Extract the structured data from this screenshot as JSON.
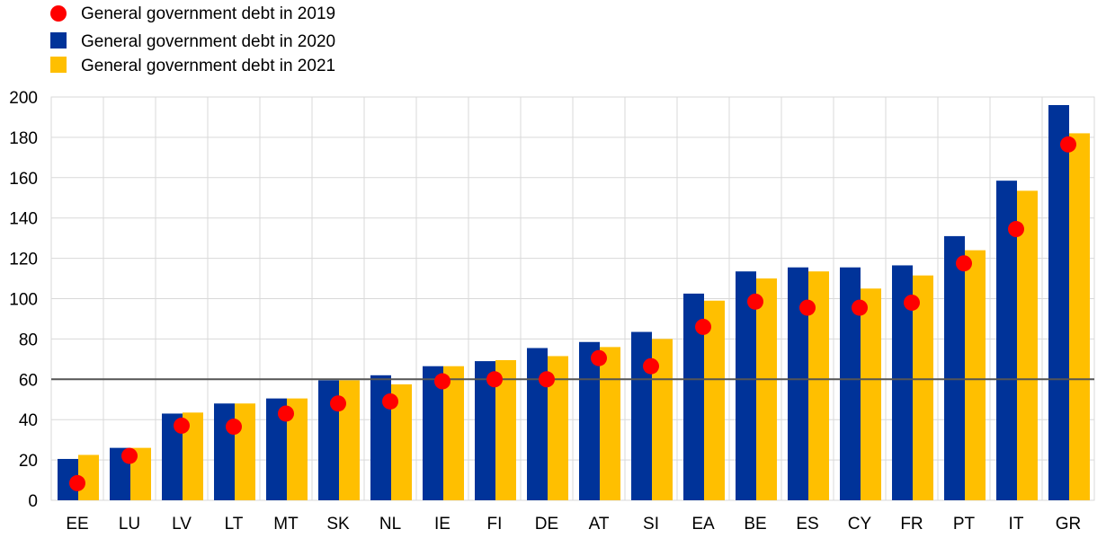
{
  "chart_data": {
    "type": "bar",
    "categories": [
      "EE",
      "LU",
      "LV",
      "LT",
      "MT",
      "SK",
      "NL",
      "IE",
      "FI",
      "DE",
      "AT",
      "SI",
      "EA",
      "BE",
      "ES",
      "CY",
      "FR",
      "PT",
      "IT",
      "GR"
    ],
    "series": [
      {
        "name": "General government debt in 2020",
        "kind": "bar",
        "color": "#003399",
        "values": [
          20.5,
          26,
          43,
          48,
          50.5,
          59.5,
          62,
          66.5,
          69,
          75.5,
          78.5,
          83.5,
          102.5,
          113.5,
          115.5,
          115.5,
          116.5,
          131,
          158.5,
          196
        ]
      },
      {
        "name": "General government debt in 2021",
        "kind": "bar",
        "color": "#FFBF00",
        "values": [
          22.5,
          26,
          43.5,
          48,
          50.5,
          59.5,
          57.5,
          66.5,
          69.5,
          71.5,
          76,
          80,
          99,
          110,
          113.5,
          105,
          111.5,
          124,
          153.5,
          182
        ]
      },
      {
        "name": "General government debt in 2019",
        "kind": "dot",
        "color": "#FF0000",
        "values": [
          8.5,
          22,
          37,
          36.5,
          43,
          48,
          49,
          59,
          60,
          60,
          70.5,
          66.5,
          86,
          98.5,
          95.5,
          95.5,
          98,
          117.5,
          134.5,
          176.5
        ]
      }
    ],
    "reference_line": 60,
    "ylim": [
      0,
      200
    ],
    "yticks": [
      "0",
      "20",
      "40",
      "60",
      "80",
      "100",
      "120",
      "140",
      "160",
      "180",
      "200"
    ],
    "grid": true,
    "legend_position": "top-left"
  }
}
